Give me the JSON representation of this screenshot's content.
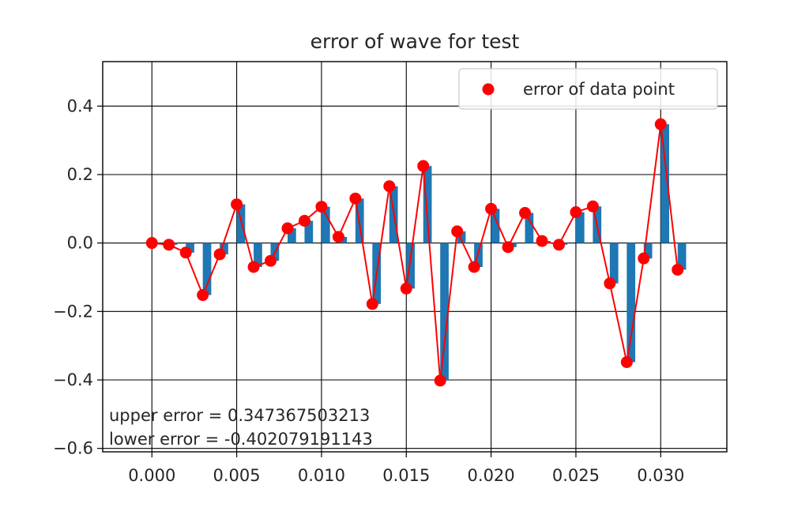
{
  "chart_data": {
    "type": "bar",
    "title": "error of wave for test",
    "xlabel": "",
    "ylabel": "",
    "xlim": [
      -0.0029,
      0.0339
    ],
    "ylim": [
      -0.61,
      0.53
    ],
    "x_ticks": [
      0.0,
      0.005,
      0.01,
      0.015,
      0.02,
      0.025,
      0.03
    ],
    "x_tick_labels": [
      "0.000",
      "0.005",
      "0.010",
      "0.015",
      "0.020",
      "0.025",
      "0.030"
    ],
    "y_ticks": [
      -0.6,
      -0.4,
      -0.2,
      0.0,
      0.2,
      0.4
    ],
    "y_tick_labels": [
      "−0.6",
      "−0.4",
      "−0.2",
      "0.0",
      "0.2",
      "0.4"
    ],
    "grid": true,
    "legend": {
      "placement": "top-right",
      "entries": [
        "error of data point"
      ]
    },
    "x": [
      0.0,
      0.001,
      0.002,
      0.003,
      0.004,
      0.005,
      0.006,
      0.007,
      0.008,
      0.009,
      0.01,
      0.011,
      0.012,
      0.013,
      0.014,
      0.015,
      0.016,
      0.017,
      0.018,
      0.019,
      0.02,
      0.021,
      0.022,
      0.023,
      0.024,
      0.025,
      0.026,
      0.027,
      0.028,
      0.029,
      0.03,
      0.031
    ],
    "series": [
      {
        "kind": "bar",
        "color": "#1f77b4",
        "values": [
          0.0,
          -0.005,
          -0.028,
          -0.152,
          -0.033,
          0.113,
          -0.07,
          -0.052,
          0.043,
          0.065,
          0.106,
          0.018,
          0.13,
          -0.178,
          0.166,
          -0.133,
          0.225,
          -0.402,
          0.034,
          -0.07,
          0.1,
          -0.012,
          0.088,
          0.006,
          -0.005,
          0.09,
          0.107,
          -0.118,
          -0.348,
          -0.045,
          0.347,
          -0.078
        ]
      },
      {
        "kind": "line+marker",
        "name": "error of data point",
        "color": "#ff0000",
        "values": [
          0.0,
          -0.005,
          -0.028,
          -0.152,
          -0.033,
          0.113,
          -0.07,
          -0.052,
          0.043,
          0.065,
          0.106,
          0.018,
          0.13,
          -0.178,
          0.166,
          -0.133,
          0.225,
          -0.402,
          0.034,
          -0.07,
          0.1,
          -0.012,
          0.088,
          0.006,
          -0.005,
          0.09,
          0.107,
          -0.118,
          -0.348,
          -0.045,
          0.347,
          -0.078
        ]
      }
    ],
    "annotations": [
      "upper error = 0.347367503213",
      "lower error = -0.402079191143"
    ]
  }
}
